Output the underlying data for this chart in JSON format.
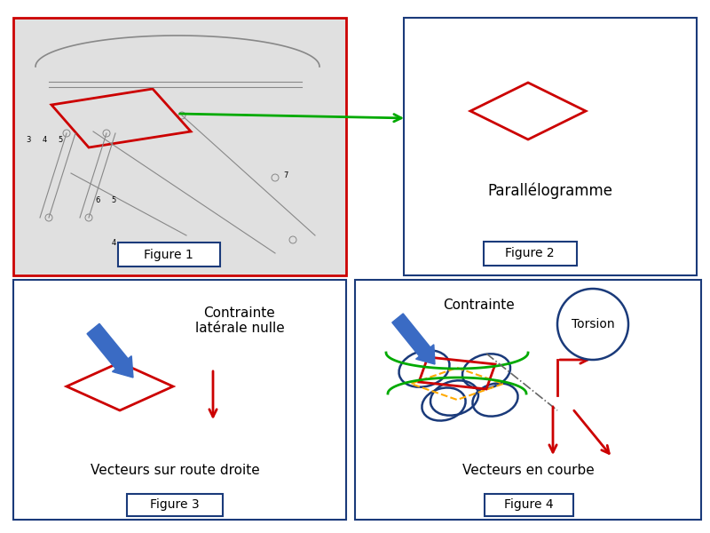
{
  "fig1_border_color": "#cc0000",
  "fig2_border_color": "#1a3a7a",
  "fig3_border_color": "#1a3a7a",
  "fig4_border_color": "#1a3a7a",
  "red_color": "#cc0000",
  "green_color": "#00aa00",
  "blue_arrow_color": "#3a6bc4",
  "orange_color": "#ffaa00",
  "navy_color": "#1a3a7a",
  "gray_color": "#888888",
  "fig1_label": "Figure 1",
  "fig2_label": "Figure 2",
  "fig3_label": "Figure 3",
  "fig4_label": "Figure 4",
  "parallelogramme_text": "Parallélogramme",
  "contrainte_laterale_text": "Contrainte\nlatérale nulle",
  "vecteurs_droite_text": "Vecteurs sur route droite",
  "vecteurs_courbe_text": "Vecteurs en courbe",
  "contrainte_text": "Contrainte",
  "torsion_text": "Torsion",
  "background": "#ffffff"
}
